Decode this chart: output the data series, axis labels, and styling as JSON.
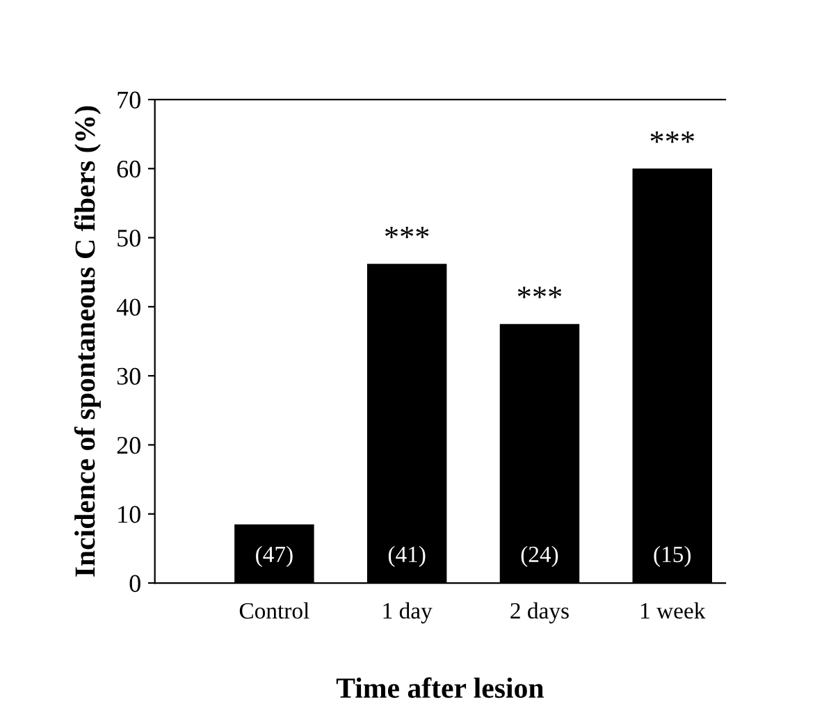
{
  "chart_data": {
    "type": "bar",
    "xlabel": "Time after lesion",
    "ylabel": "Incidence of spontaneous C fibers (%)",
    "categories": [
      "Control",
      "1 day",
      "2 days",
      "1 week"
    ],
    "values": [
      8.5,
      46.2,
      37.5,
      60.0
    ],
    "color": "#000000",
    "ylim": [
      0,
      70
    ],
    "yticks": [
      0,
      10,
      20,
      30,
      40,
      50,
      60,
      70
    ],
    "grid": false,
    "annotations": [
      {
        "text": "***",
        "x": "1 day",
        "y": 46.2
      },
      {
        "text": "***",
        "x": "2 days",
        "y": 37.5
      },
      {
        "text": "***",
        "x": "1 week",
        "y": 60.0
      },
      "(47)",
      "(41)",
      "(24)",
      "(15)"
    ]
  }
}
